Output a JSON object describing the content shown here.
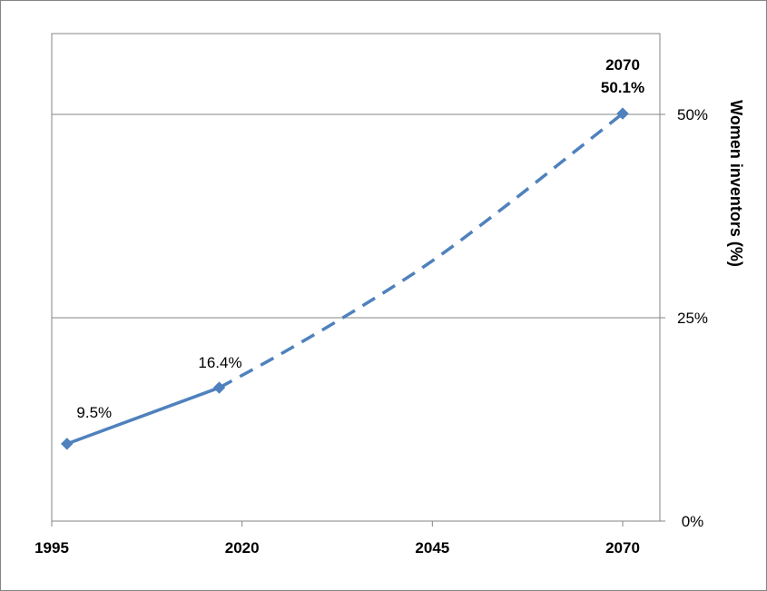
{
  "chart_data": {
    "type": "line",
    "ylabel": "Women inventors (%)",
    "xlabel": "",
    "title": "",
    "xlim": [
      1995,
      2070
    ],
    "ylim": [
      0,
      50
    ],
    "x_ticks": [
      1995,
      2020,
      2045,
      2070
    ],
    "x_tick_labels": [
      "1995",
      "2020",
      "2045",
      "2070"
    ],
    "y_ticks": [
      0,
      25,
      50
    ],
    "y_tick_labels": [
      "0%",
      "25%",
      "50%"
    ],
    "y_axis_side": "right",
    "grid": "horizontal",
    "legend": "none",
    "color": "#4F81BD",
    "series": [
      {
        "style": "solid",
        "x": [
          1997,
          2017
        ],
        "y": [
          9.5,
          16.4
        ],
        "markers": true
      },
      {
        "style": "dashed",
        "x": [
          2017,
          2025,
          2035,
          2045,
          2055,
          2065,
          2070
        ],
        "y": [
          16.4,
          20.5,
          26.0,
          32.0,
          39.0,
          46.4,
          50.1
        ],
        "markers": false
      }
    ],
    "points": [
      {
        "x": 2070,
        "y": 50.1,
        "marker": true
      }
    ],
    "annotations": [
      {
        "text": "9.5%",
        "bold": false,
        "x": 1997,
        "y": 9.5
      },
      {
        "text": "16.4%",
        "bold": false,
        "x": 2017,
        "y": 16.4
      },
      {
        "text": "2070",
        "bold": true,
        "x": 2070,
        "y": 50.1
      },
      {
        "text": "50.1%",
        "bold": true,
        "x": 2070,
        "y": 50.1
      }
    ]
  }
}
